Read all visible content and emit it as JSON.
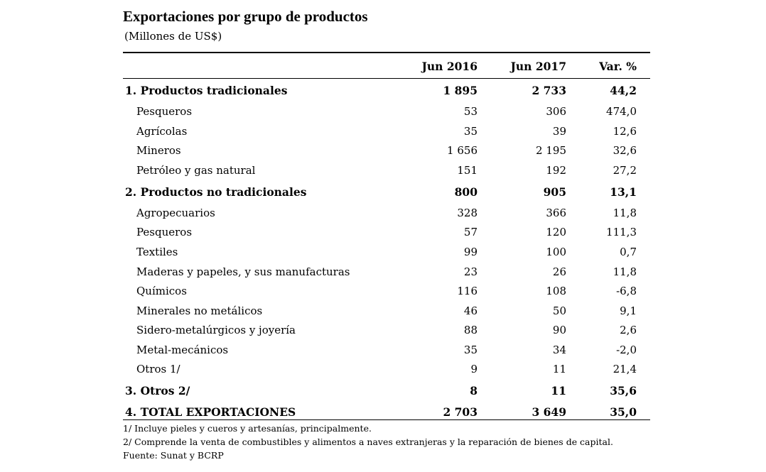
{
  "title": "Exportaciones por grupo de productos",
  "subtitle": "(Millones de US$)",
  "columns": [
    "",
    "Jun 2016",
    "Jun 2017",
    "Var. %"
  ],
  "rows": [
    {
      "label": "1. Productos tradicionales",
      "a": "1 895",
      "b": "2 733",
      "c": "44,2",
      "kind": "bold"
    },
    {
      "label": "Pesqueros",
      "a": "53",
      "b": "306",
      "c": "474,0",
      "kind": "item"
    },
    {
      "label": "Agrícolas",
      "a": "35",
      "b": "39",
      "c": "12,6",
      "kind": "item"
    },
    {
      "label": "Mineros",
      "a": "1 656",
      "b": "2 195",
      "c": "32,6",
      "kind": "item"
    },
    {
      "label": "Petróleo  y  gas natural",
      "a": "151",
      "b": "192",
      "c": "27,2",
      "kind": "item"
    },
    {
      "label": "2. Productos no tradicionales",
      "a": "800",
      "b": "905",
      "c": "13,1",
      "kind": "bold"
    },
    {
      "label": "Agropecuarios",
      "a": "328",
      "b": "366",
      "c": "11,8",
      "kind": "item"
    },
    {
      "label": "Pesqueros",
      "a": "57",
      "b": "120",
      "c": "111,3",
      "kind": "item"
    },
    {
      "label": "Textiles",
      "a": "99",
      "b": "100",
      "c": "0,7",
      "kind": "item"
    },
    {
      "label": "Maderas y papeles, y sus manufacturas",
      "a": "23",
      "b": "26",
      "c": "11,8",
      "kind": "item"
    },
    {
      "label": "Químicos",
      "a": "116",
      "b": "108",
      "c": "-6,8",
      "kind": "item"
    },
    {
      "label": "Minerales no metálicos",
      "a": "46",
      "b": "50",
      "c": "9,1",
      "kind": "item"
    },
    {
      "label": "Sidero-metalúrgicos y joyería",
      "a": "88",
      "b": "90",
      "c": "2,6",
      "kind": "item"
    },
    {
      "label": "Metal-mecánicos",
      "a": "35",
      "b": "34",
      "c": "-2,0",
      "kind": "item"
    },
    {
      "label": "Otros  1/",
      "a": "9",
      "b": "11",
      "c": "21,4",
      "kind": "item"
    },
    {
      "label": "3. Otros  2/",
      "a": "8",
      "b": "11",
      "c": "35,6",
      "kind": "bold"
    },
    {
      "label": "4. TOTAL EXPORTACIONES",
      "a": "2 703",
      "b": "3 649",
      "c": "35,0",
      "kind": "bold"
    }
  ],
  "notes": [
    "1/  Incluye pieles y cueros y artesanías, principalmente.",
    "2/  Comprende la venta de combustibles y alimentos a naves extranjeras y la reparación de bienes de capital.",
    "Fuente: Sunat y BCRP"
  ]
}
